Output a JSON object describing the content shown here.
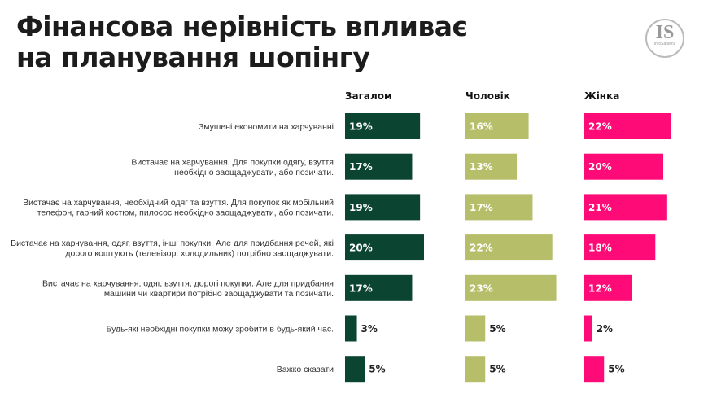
{
  "title_line1": "Фінансова нерівність впливає",
  "title_line2": "на планування шопінгу",
  "logo_text": "IS",
  "logo_subtext": "InfoSapiens",
  "chart_data": {
    "type": "bar",
    "orientation": "horizontal",
    "categories": [
      [
        "Змушені економити на харчуванні"
      ],
      [
        "Вистачає на харчування. Для покупки одягу, взуття",
        "необхідно заощаджувати, або позичати."
      ],
      [
        "Вистачає на харчування, необхідний одяг та взуття. Для покупок як мобільний",
        "телефон, гарний костюм, пилосос необхідно заощаджувати, або позичати."
      ],
      [
        "Вистачає на харчування, одяг, взуття, інші покупки. Але для придбання речей, які",
        "дорого коштують (телевізор, холодильник) потрібно заощаджувати."
      ],
      [
        "Вистачає на харчування, одяг, взуття, дорогі покупки. Але для придбання",
        "машини чи квартири потрібно заощаджувати та позичати."
      ],
      [
        "Будь-які необхідні покупки можу зробити в будь-який час."
      ],
      [
        "Важко сказати"
      ]
    ],
    "series": [
      {
        "name": "Загалом",
        "values": [
          19,
          17,
          19,
          20,
          17,
          3,
          5
        ],
        "color": "#0b4430"
      },
      {
        "name": "Чоловік",
        "values": [
          16,
          13,
          17,
          22,
          23,
          5,
          5
        ],
        "color": "#b7be6a"
      },
      {
        "name": "Жінка",
        "values": [
          22,
          20,
          21,
          18,
          12,
          2,
          5
        ],
        "color": "#ff0b78"
      }
    ],
    "unit": "%",
    "grid": false
  }
}
